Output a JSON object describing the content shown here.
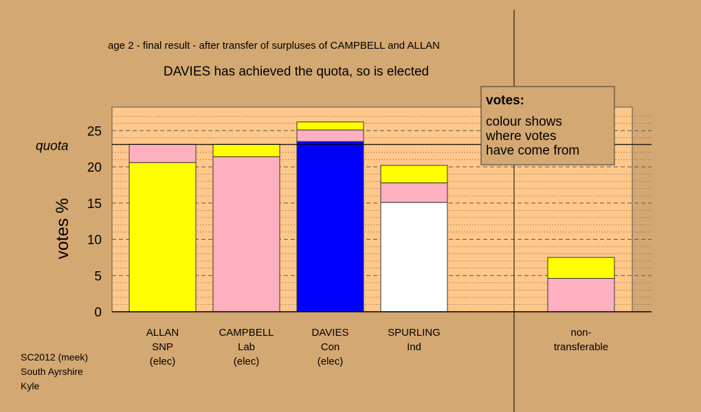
{
  "chart_data": {
    "type": "bar",
    "stacked": true,
    "subtitle": "age 2 - final result - after transfer of surpluses of CAMPBELL and ALLAN",
    "title": "DAVIES has achieved the quota, so is elected",
    "ylabel": "votes %",
    "ylim": [
      0,
      28
    ],
    "yticks": [
      "0",
      "5",
      "10",
      "15",
      "20",
      "25"
    ],
    "ytick_values": [
      0,
      5,
      10,
      15,
      20,
      25
    ],
    "quota": {
      "label": "quota",
      "value": 23.1
    },
    "grid": true,
    "categories": [
      {
        "name": "ALLAN",
        "party": "SNP",
        "status": "(elec)"
      },
      {
        "name": "CAMPBELL",
        "party": "Lab",
        "status": "(elec)"
      },
      {
        "name": "DAVIES",
        "party": "Con",
        "status": "(elec)"
      },
      {
        "name": "SPURLING",
        "party": "Ind",
        "status": ""
      },
      {
        "name": "non-",
        "party": "transferable",
        "status": ""
      }
    ],
    "bars": [
      {
        "segments": [
          {
            "color": "#FFFF00",
            "value": 20.6
          },
          {
            "color": "#FFB0C0",
            "value": 2.5
          }
        ]
      },
      {
        "segments": [
          {
            "color": "#FFB0C0",
            "value": 21.4
          },
          {
            "color": "#FFFF00",
            "value": 1.7
          }
        ]
      },
      {
        "segments": [
          {
            "color": "#0000FF",
            "value": 23.5
          },
          {
            "color": "#FFB0C0",
            "value": 1.6
          },
          {
            "color": "#FFFF00",
            "value": 1.1
          }
        ]
      },
      {
        "segments": [
          {
            "color": "#FFFFFF",
            "value": 15.1
          },
          {
            "color": "#FFB0C0",
            "value": 2.7
          },
          {
            "color": "#FFFF00",
            "value": 2.4
          }
        ]
      },
      {
        "segments": [
          {
            "color": "#FFB0C0",
            "value": 4.6
          },
          {
            "color": "#FFFF00",
            "value": 2.9
          }
        ]
      }
    ],
    "legend": {
      "title": "votes:",
      "lines": [
        "colour shows",
        "where votes",
        "have come from"
      ],
      "placement": "top-right"
    },
    "footer": [
      "SC2012 (meek)",
      "South Ayrshire",
      "Kyle"
    ],
    "colors": {
      "background": "#D4A872",
      "plot_area": "#FFC88A"
    }
  }
}
